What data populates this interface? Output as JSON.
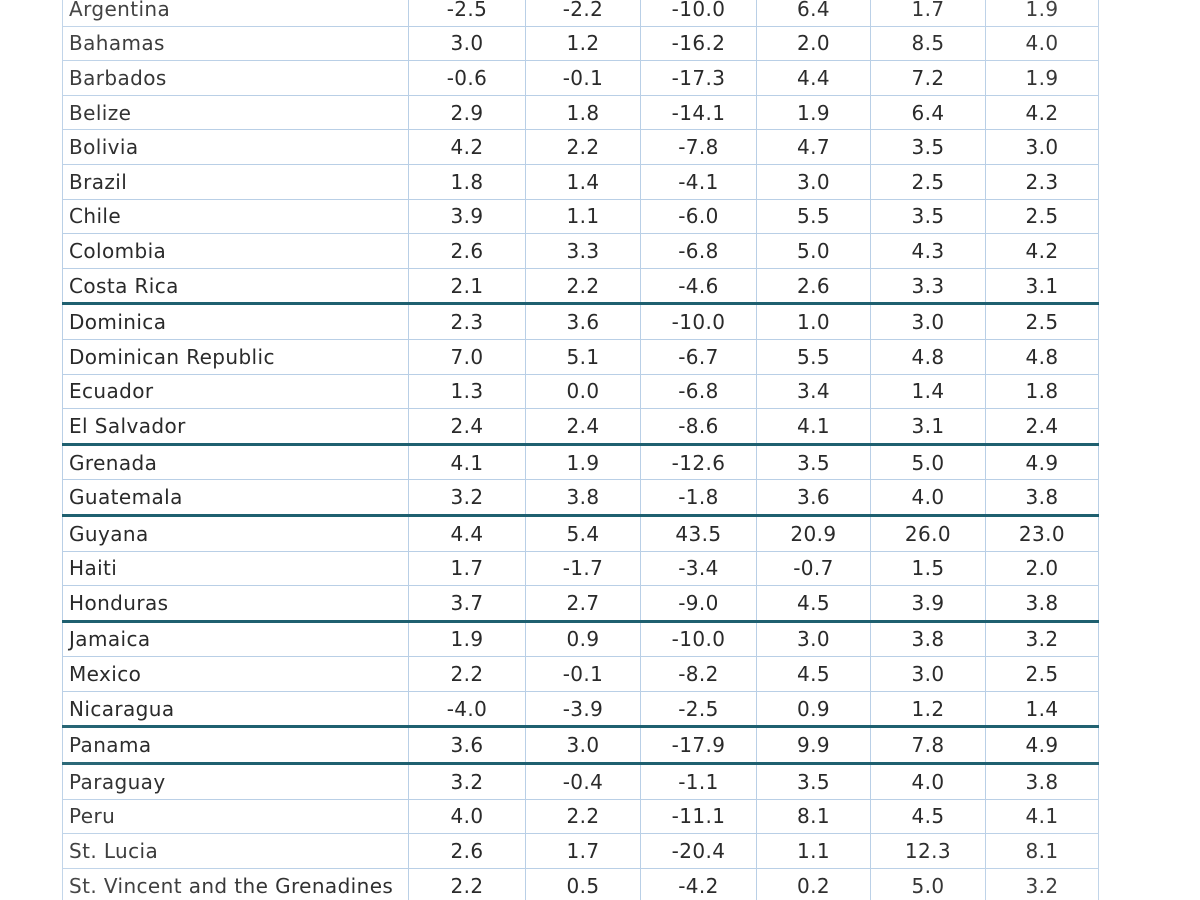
{
  "table": {
    "rows": [
      {
        "country": "Argentina",
        "values": [
          "-2.5",
          "-2.2",
          "-10.0",
          "6.4",
          "1.7",
          "1.9"
        ],
        "separator": false
      },
      {
        "country": "Bahamas",
        "values": [
          "3.0",
          "1.2",
          "-16.2",
          "2.0",
          "8.5",
          "4.0"
        ],
        "separator": false
      },
      {
        "country": "Barbados",
        "values": [
          "-0.6",
          "-0.1",
          "-17.3",
          "4.4",
          "7.2",
          "1.9"
        ],
        "separator": false
      },
      {
        "country": "Belize",
        "values": [
          "2.9",
          "1.8",
          "-14.1",
          "1.9",
          "6.4",
          "4.2"
        ],
        "separator": false
      },
      {
        "country": "Bolivia",
        "values": [
          "4.2",
          "2.2",
          "-7.8",
          "4.7",
          "3.5",
          "3.0"
        ],
        "separator": false
      },
      {
        "country": "Brazil",
        "values": [
          "1.8",
          "1.4",
          "-4.1",
          "3.0",
          "2.5",
          "2.3"
        ],
        "separator": false
      },
      {
        "country": "Chile",
        "values": [
          "3.9",
          "1.1",
          "-6.0",
          "5.5",
          "3.5",
          "2.5"
        ],
        "separator": false
      },
      {
        "country": "Colombia",
        "values": [
          "2.6",
          "3.3",
          "-6.8",
          "5.0",
          "4.3",
          "4.2"
        ],
        "separator": false
      },
      {
        "country": "Costa Rica",
        "values": [
          "2.1",
          "2.2",
          "-4.6",
          "2.6",
          "3.3",
          "3.1"
        ],
        "separator": true
      },
      {
        "country": "Dominica",
        "values": [
          "2.3",
          "3.6",
          "-10.0",
          "1.0",
          "3.0",
          "2.5"
        ],
        "separator": false
      },
      {
        "country": "Dominican Republic",
        "values": [
          "7.0",
          "5.1",
          "-6.7",
          "5.5",
          "4.8",
          "4.8"
        ],
        "separator": false
      },
      {
        "country": "Ecuador",
        "values": [
          "1.3",
          "0.0",
          "-6.8",
          "3.4",
          "1.4",
          "1.8"
        ],
        "separator": false
      },
      {
        "country": "El Salvador",
        "values": [
          "2.4",
          "2.4",
          "-8.6",
          "4.1",
          "3.1",
          "2.4"
        ],
        "separator": true
      },
      {
        "country": "Grenada",
        "values": [
          "4.1",
          "1.9",
          "-12.6",
          "3.5",
          "5.0",
          "4.9"
        ],
        "separator": false
      },
      {
        "country": "Guatemala",
        "values": [
          "3.2",
          "3.8",
          "-1.8",
          "3.6",
          "4.0",
          "3.8"
        ],
        "separator": true
      },
      {
        "country": "Guyana",
        "values": [
          "4.4",
          "5.4",
          "43.5",
          "20.9",
          "26.0",
          "23.0"
        ],
        "separator": false
      },
      {
        "country": "Haiti",
        "values": [
          "1.7",
          "-1.7",
          "-3.4",
          "-0.7",
          "1.5",
          "2.0"
        ],
        "separator": false
      },
      {
        "country": "Honduras",
        "values": [
          "3.7",
          "2.7",
          "-9.0",
          "4.5",
          "3.9",
          "3.8"
        ],
        "separator": true
      },
      {
        "country": "Jamaica",
        "values": [
          "1.9",
          "0.9",
          "-10.0",
          "3.0",
          "3.8",
          "3.2"
        ],
        "separator": false
      },
      {
        "country": "Mexico",
        "values": [
          "2.2",
          "-0.1",
          "-8.2",
          "4.5",
          "3.0",
          "2.5"
        ],
        "separator": false
      },
      {
        "country": "Nicaragua",
        "values": [
          "-4.0",
          "-3.9",
          "-2.5",
          "0.9",
          "1.2",
          "1.4"
        ],
        "separator": true
      },
      {
        "country": "Panama",
        "values": [
          "3.6",
          "3.0",
          "-17.9",
          "9.9",
          "7.8",
          "4.9"
        ],
        "separator": true
      },
      {
        "country": "Paraguay",
        "values": [
          "3.2",
          "-0.4",
          "-1.1",
          "3.5",
          "4.0",
          "3.8"
        ],
        "separator": false
      },
      {
        "country": "Peru",
        "values": [
          "4.0",
          "2.2",
          "-11.1",
          "8.1",
          "4.5",
          "4.1"
        ],
        "separator": false
      },
      {
        "country": "St. Lucia",
        "values": [
          "2.6",
          "1.7",
          "-20.4",
          "1.1",
          "12.3",
          "8.1"
        ],
        "separator": false
      },
      {
        "country": "St. Vincent and the Grenadines",
        "values": [
          "2.2",
          "0.5",
          "-4.2",
          "0.2",
          "5.0",
          "3.2"
        ],
        "separator": false
      }
    ]
  }
}
